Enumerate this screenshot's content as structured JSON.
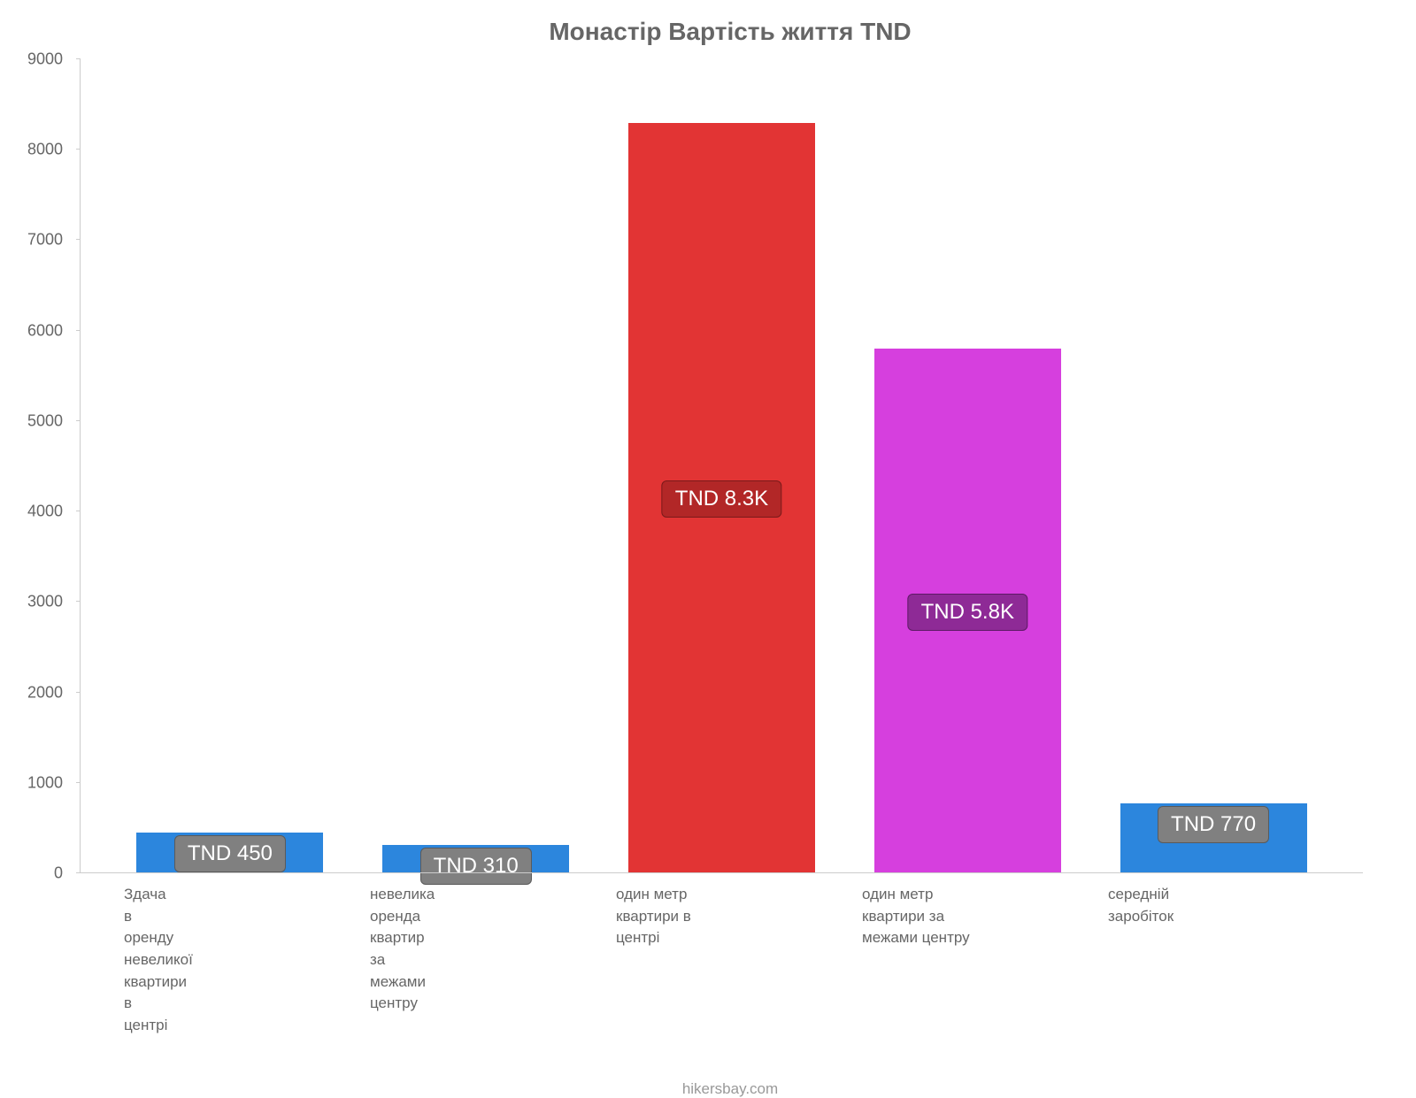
{
  "chart": {
    "type": "bar",
    "title": "Монастір Вартість життя TND",
    "title_color": "#666666",
    "title_fontsize": 28,
    "background_color": "#ffffff",
    "axis_color": "#cccccc",
    "label_color": "#666666",
    "label_fontsize": 17,
    "ylim": [
      0,
      9000
    ],
    "ytick_step": 1000,
    "yticks": [
      "0",
      "1000",
      "2000",
      "3000",
      "4000",
      "5000",
      "6000",
      "7000",
      "8000",
      "9000"
    ],
    "bar_width_pct": 76,
    "bars": [
      {
        "category": "Здача в оренду невеликої квартири в центрі",
        "value": 450,
        "display": "TND 450",
        "bar_color": "#2c86dd",
        "label_bg": "#808080",
        "label_border": "#5a5a5a",
        "low": true
      },
      {
        "category": "невелика оренда квартир за межами центру",
        "value": 310,
        "display": "TND 310",
        "bar_color": "#2c86dd",
        "label_bg": "#808080",
        "label_border": "#5a5a5a",
        "low": true
      },
      {
        "category": "один метр квартири в центрі",
        "value": 8300,
        "display": "TND 8.3K",
        "bar_color": "#e23434",
        "label_bg": "#b22727",
        "label_border": "#7a1a1a",
        "low": false
      },
      {
        "category": "один метр квартири за межами центру",
        "value": 5800,
        "display": "TND 5.8K",
        "bar_color": "#d63fde",
        "label_bg": "#8e2a96",
        "label_border": "#5e1a66",
        "low": false
      },
      {
        "category": "середній заробіток",
        "value": 770,
        "display": "TND 770",
        "bar_color": "#2c86dd",
        "label_bg": "#808080",
        "label_border": "#5a5a5a",
        "low": true
      }
    ],
    "attribution": "hikersbay.com",
    "attribution_color": "#999999"
  }
}
